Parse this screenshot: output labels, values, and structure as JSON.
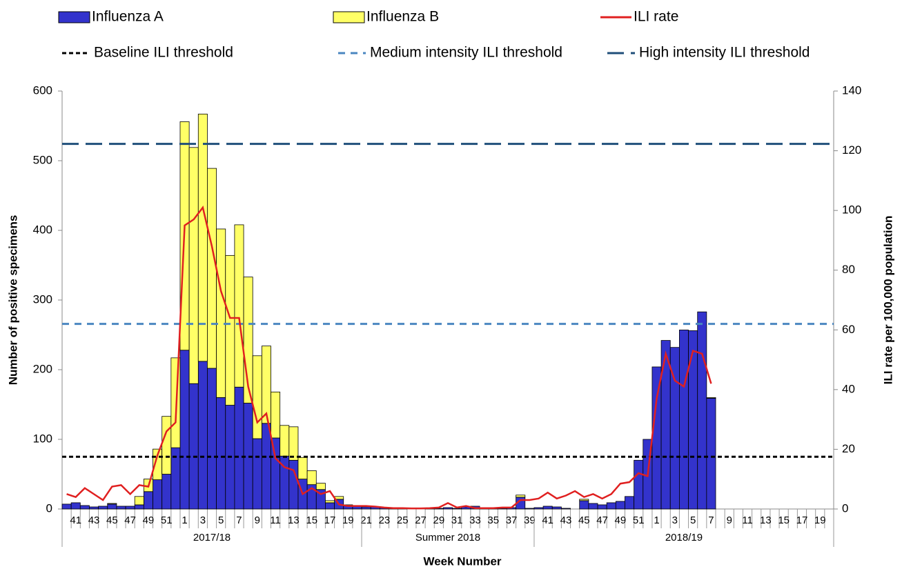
{
  "chart_data": {
    "type": "bar",
    "stacked": true,
    "xlabel": "Week Number",
    "ylabel": "Number of positive specimens",
    "y2label": "ILI rate per 100,000 population",
    "ylim": [
      0,
      600
    ],
    "yticks": [
      0,
      100,
      200,
      300,
      400,
      500,
      600
    ],
    "y2lim": [
      0,
      140
    ],
    "y2ticks": [
      0,
      20,
      40,
      60,
      80,
      100,
      120,
      140
    ],
    "grid": false,
    "categories": [
      null,
      "41",
      null,
      "43",
      null,
      "45",
      null,
      "47",
      null,
      "49",
      null,
      "51",
      null,
      "1",
      null,
      "3",
      null,
      "5",
      null,
      "7",
      null,
      "9",
      null,
      "11",
      null,
      "13",
      null,
      "15",
      null,
      "17",
      null,
      "19",
      null,
      "21",
      null,
      "23",
      null,
      "25",
      null,
      "27",
      null,
      "29",
      null,
      "31",
      null,
      "33",
      null,
      "35",
      null,
      "37",
      null,
      "39",
      null,
      "41",
      null,
      "43",
      null,
      "45",
      null,
      "47",
      null,
      "49",
      null,
      "51",
      null,
      "1",
      null,
      "3",
      null,
      "5",
      null,
      "7",
      null,
      "9",
      null,
      "11",
      null,
      "13",
      null,
      "15",
      null,
      "17",
      null,
      "19",
      null
    ],
    "groups": [
      {
        "label": "2017/18",
        "weeks": 33
      },
      {
        "label": "Summer 2018",
        "weeks": 19
      },
      {
        "label": "2018/19",
        "weeks": 33
      }
    ],
    "series": [
      {
        "name": "Influenza A",
        "type": "bar",
        "color": "#3333cc",
        "values": [
          7,
          9,
          5,
          3,
          4,
          7,
          4,
          4,
          6,
          25,
          42,
          50,
          88,
          228,
          180,
          212,
          202,
          160,
          149,
          175,
          152,
          101,
          123,
          102,
          76,
          70,
          43,
          35,
          28,
          9,
          14,
          5,
          4,
          3,
          3,
          2,
          1,
          1,
          0,
          0,
          1,
          1,
          2,
          1,
          3,
          4,
          2,
          1,
          1,
          2,
          17,
          1,
          2,
          4,
          3,
          1,
          0,
          12,
          8,
          6,
          9,
          11,
          18,
          70,
          100,
          204,
          242,
          232,
          257,
          256,
          283,
          159,
          null,
          null,
          null,
          null,
          null,
          null,
          null,
          null,
          null,
          null,
          null,
          null,
          null
        ]
      },
      {
        "name": "Influenza B",
        "type": "bar",
        "color": "#ffff66",
        "values": [
          0,
          0,
          0,
          0,
          0,
          1,
          0,
          0,
          12,
          18,
          44,
          83,
          129,
          328,
          339,
          355,
          287,
          242,
          215,
          233,
          181,
          119,
          111,
          66,
          44,
          48,
          31,
          20,
          9,
          3,
          4,
          1,
          0,
          0,
          0,
          0,
          0,
          0,
          0,
          0,
          0,
          0,
          0,
          0,
          0,
          0,
          0,
          0,
          0,
          0,
          3,
          0,
          0,
          0,
          0,
          0,
          0,
          2,
          0,
          0,
          0,
          0,
          0,
          0,
          0,
          0,
          0,
          0,
          0,
          0,
          0,
          1,
          null,
          null,
          null,
          null,
          null,
          null,
          null,
          null,
          null,
          null,
          null,
          null,
          null
        ]
      },
      {
        "name": "ILI rate",
        "type": "line",
        "axis": "y2",
        "color": "#e02020",
        "values": [
          5,
          4,
          7,
          5,
          3,
          7.5,
          8,
          5,
          8,
          7.5,
          18,
          26,
          29,
          95,
          97,
          101,
          88,
          73,
          64,
          64,
          41,
          29,
          32,
          17,
          14,
          13,
          5,
          7,
          5,
          6,
          1.5,
          1,
          1,
          1,
          0.8,
          0.5,
          0.3,
          0.3,
          0.2,
          0.2,
          0.3,
          0.5,
          2,
          0.5,
          1,
          0.3,
          0.3,
          0.3,
          0.5,
          0.5,
          3,
          3,
          3.5,
          5.5,
          3.5,
          4.5,
          6,
          4,
          5,
          3.5,
          5,
          8.5,
          9,
          12,
          11,
          37,
          52,
          43,
          41,
          53,
          52,
          42,
          null,
          null,
          null,
          null,
          null,
          null,
          null,
          null,
          null,
          null,
          null,
          null,
          null
        ]
      }
    ],
    "thresholds": [
      {
        "name": "Baseline ILI threshold",
        "axis": "y2",
        "value": 17.5,
        "color": "#000000",
        "dash": "short"
      },
      {
        "name": "Medium intensity ILI threshold",
        "axis": "y2",
        "value": 62,
        "color": "#4a86c0",
        "dash": "medium"
      },
      {
        "name": "High intensity ILI threshold",
        "axis": "y2",
        "value": 122.3,
        "color": "#1f4e79",
        "dash": "long"
      }
    ]
  }
}
